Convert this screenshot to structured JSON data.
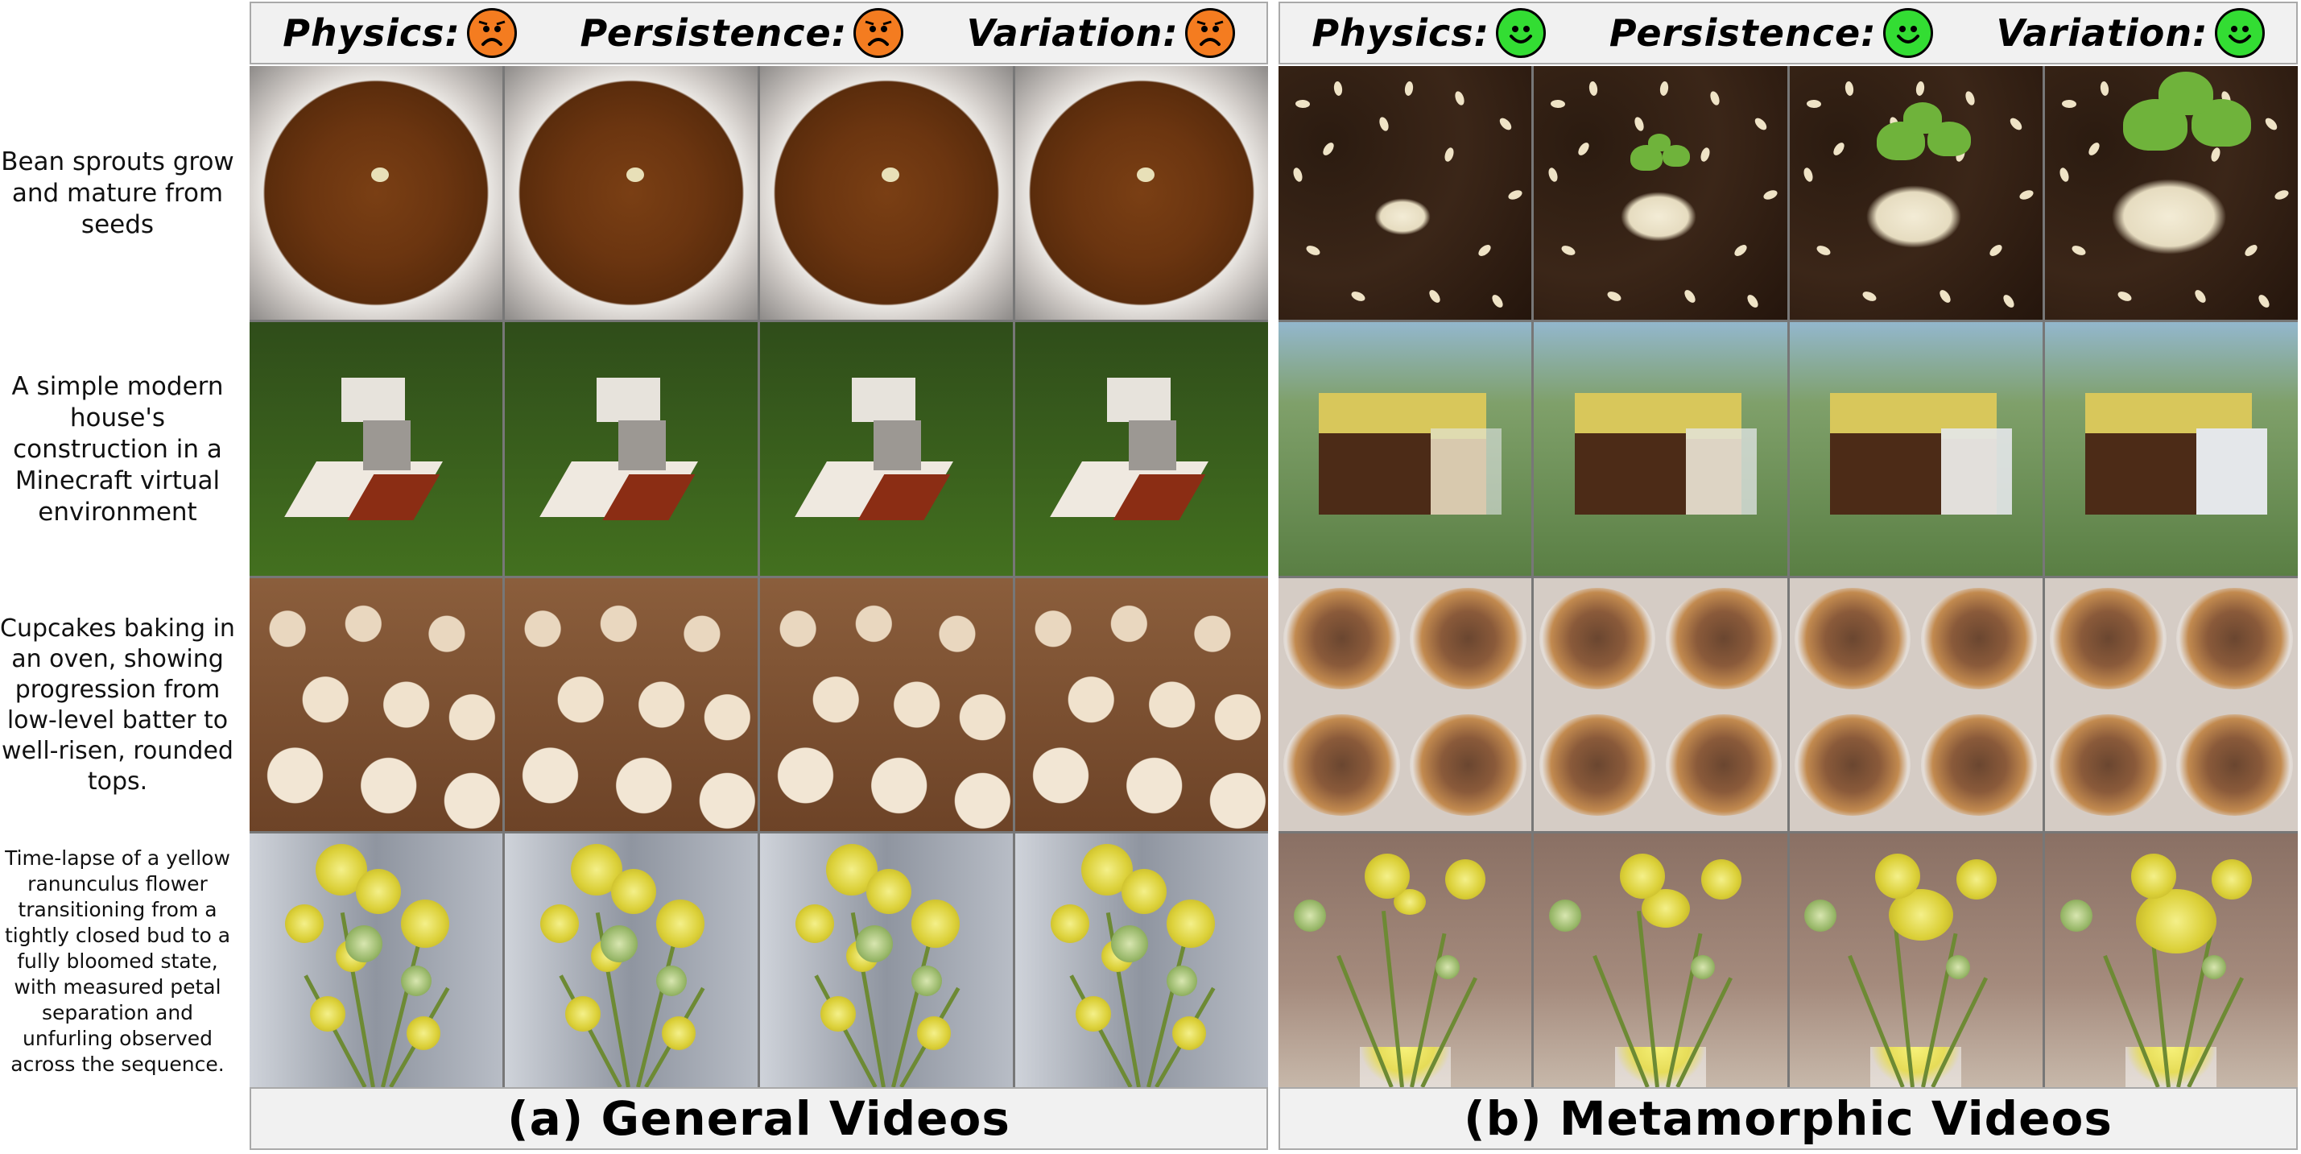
{
  "row_labels": [
    "Bean sprouts grow\nand mature from\nseeds",
    "A simple modern\nhouse's\nconstruction in a\nMinecraft virtual\nenvironment",
    "Cupcakes baking in\nan oven, showing\nprogression from\nlow-level batter to\nwell-risen, rounded\ntops.",
    "Time-lapse of a yellow\nranunculus flower\ntransitioning from a\ntightly closed bud to a\nfully bloomed state,\nwith measured petal\nseparation and\nunfurling observed\nacross the sequence."
  ],
  "panels": {
    "a": {
      "metrics": [
        {
          "label": "Physics:",
          "face": "sad-face-icon"
        },
        {
          "label": "Persistence:",
          "face": "sad-face-icon"
        },
        {
          "label": "Variation:",
          "face": "sad-face-icon"
        }
      ],
      "face_color": "#f47c20",
      "caption": "(a) General Videos"
    },
    "b": {
      "metrics": [
        {
          "label": "Physics:",
          "face": "happy-face-icon"
        },
        {
          "label": "Persistence:",
          "face": "happy-face-icon"
        },
        {
          "label": "Variation:",
          "face": "happy-face-icon"
        }
      ],
      "face_color": "#33dd33",
      "caption": "(b) Metamorphic Videos"
    }
  },
  "frames_per_row": 4
}
